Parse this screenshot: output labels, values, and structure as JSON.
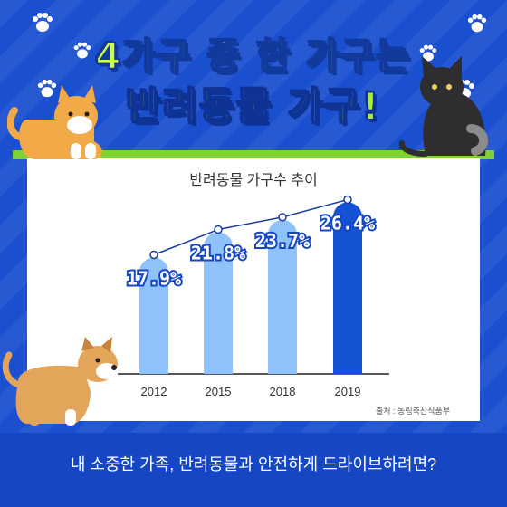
{
  "headline": {
    "line1": "4가구 중 한 가구는",
    "line2": "반려동물 가구!"
  },
  "source": "출처 : 농림축산식품부",
  "bottom_text": "내 소중한 가족, 반려동물과 안전하게 드라이브하려면?",
  "colors": {
    "background": "#1a4fd0",
    "bar_light": "#8fc2fa",
    "bar_dark": "#1453d4",
    "line": "#1c3f9f",
    "accent_green": "#7fd231"
  },
  "chart_data": {
    "type": "bar",
    "title": "반려동물 가구수 추이",
    "categories": [
      "2012",
      "2015",
      "2018",
      "2019"
    ],
    "values": [
      17.9,
      21.8,
      23.7,
      26.4
    ],
    "data_labels": [
      "17.9%",
      "21.8%",
      "23.7%",
      "26.4%"
    ],
    "unit": "%",
    "overlay_line": true,
    "highlight_category": "2019",
    "ylim": [
      0,
      28
    ],
    "grid": false
  }
}
